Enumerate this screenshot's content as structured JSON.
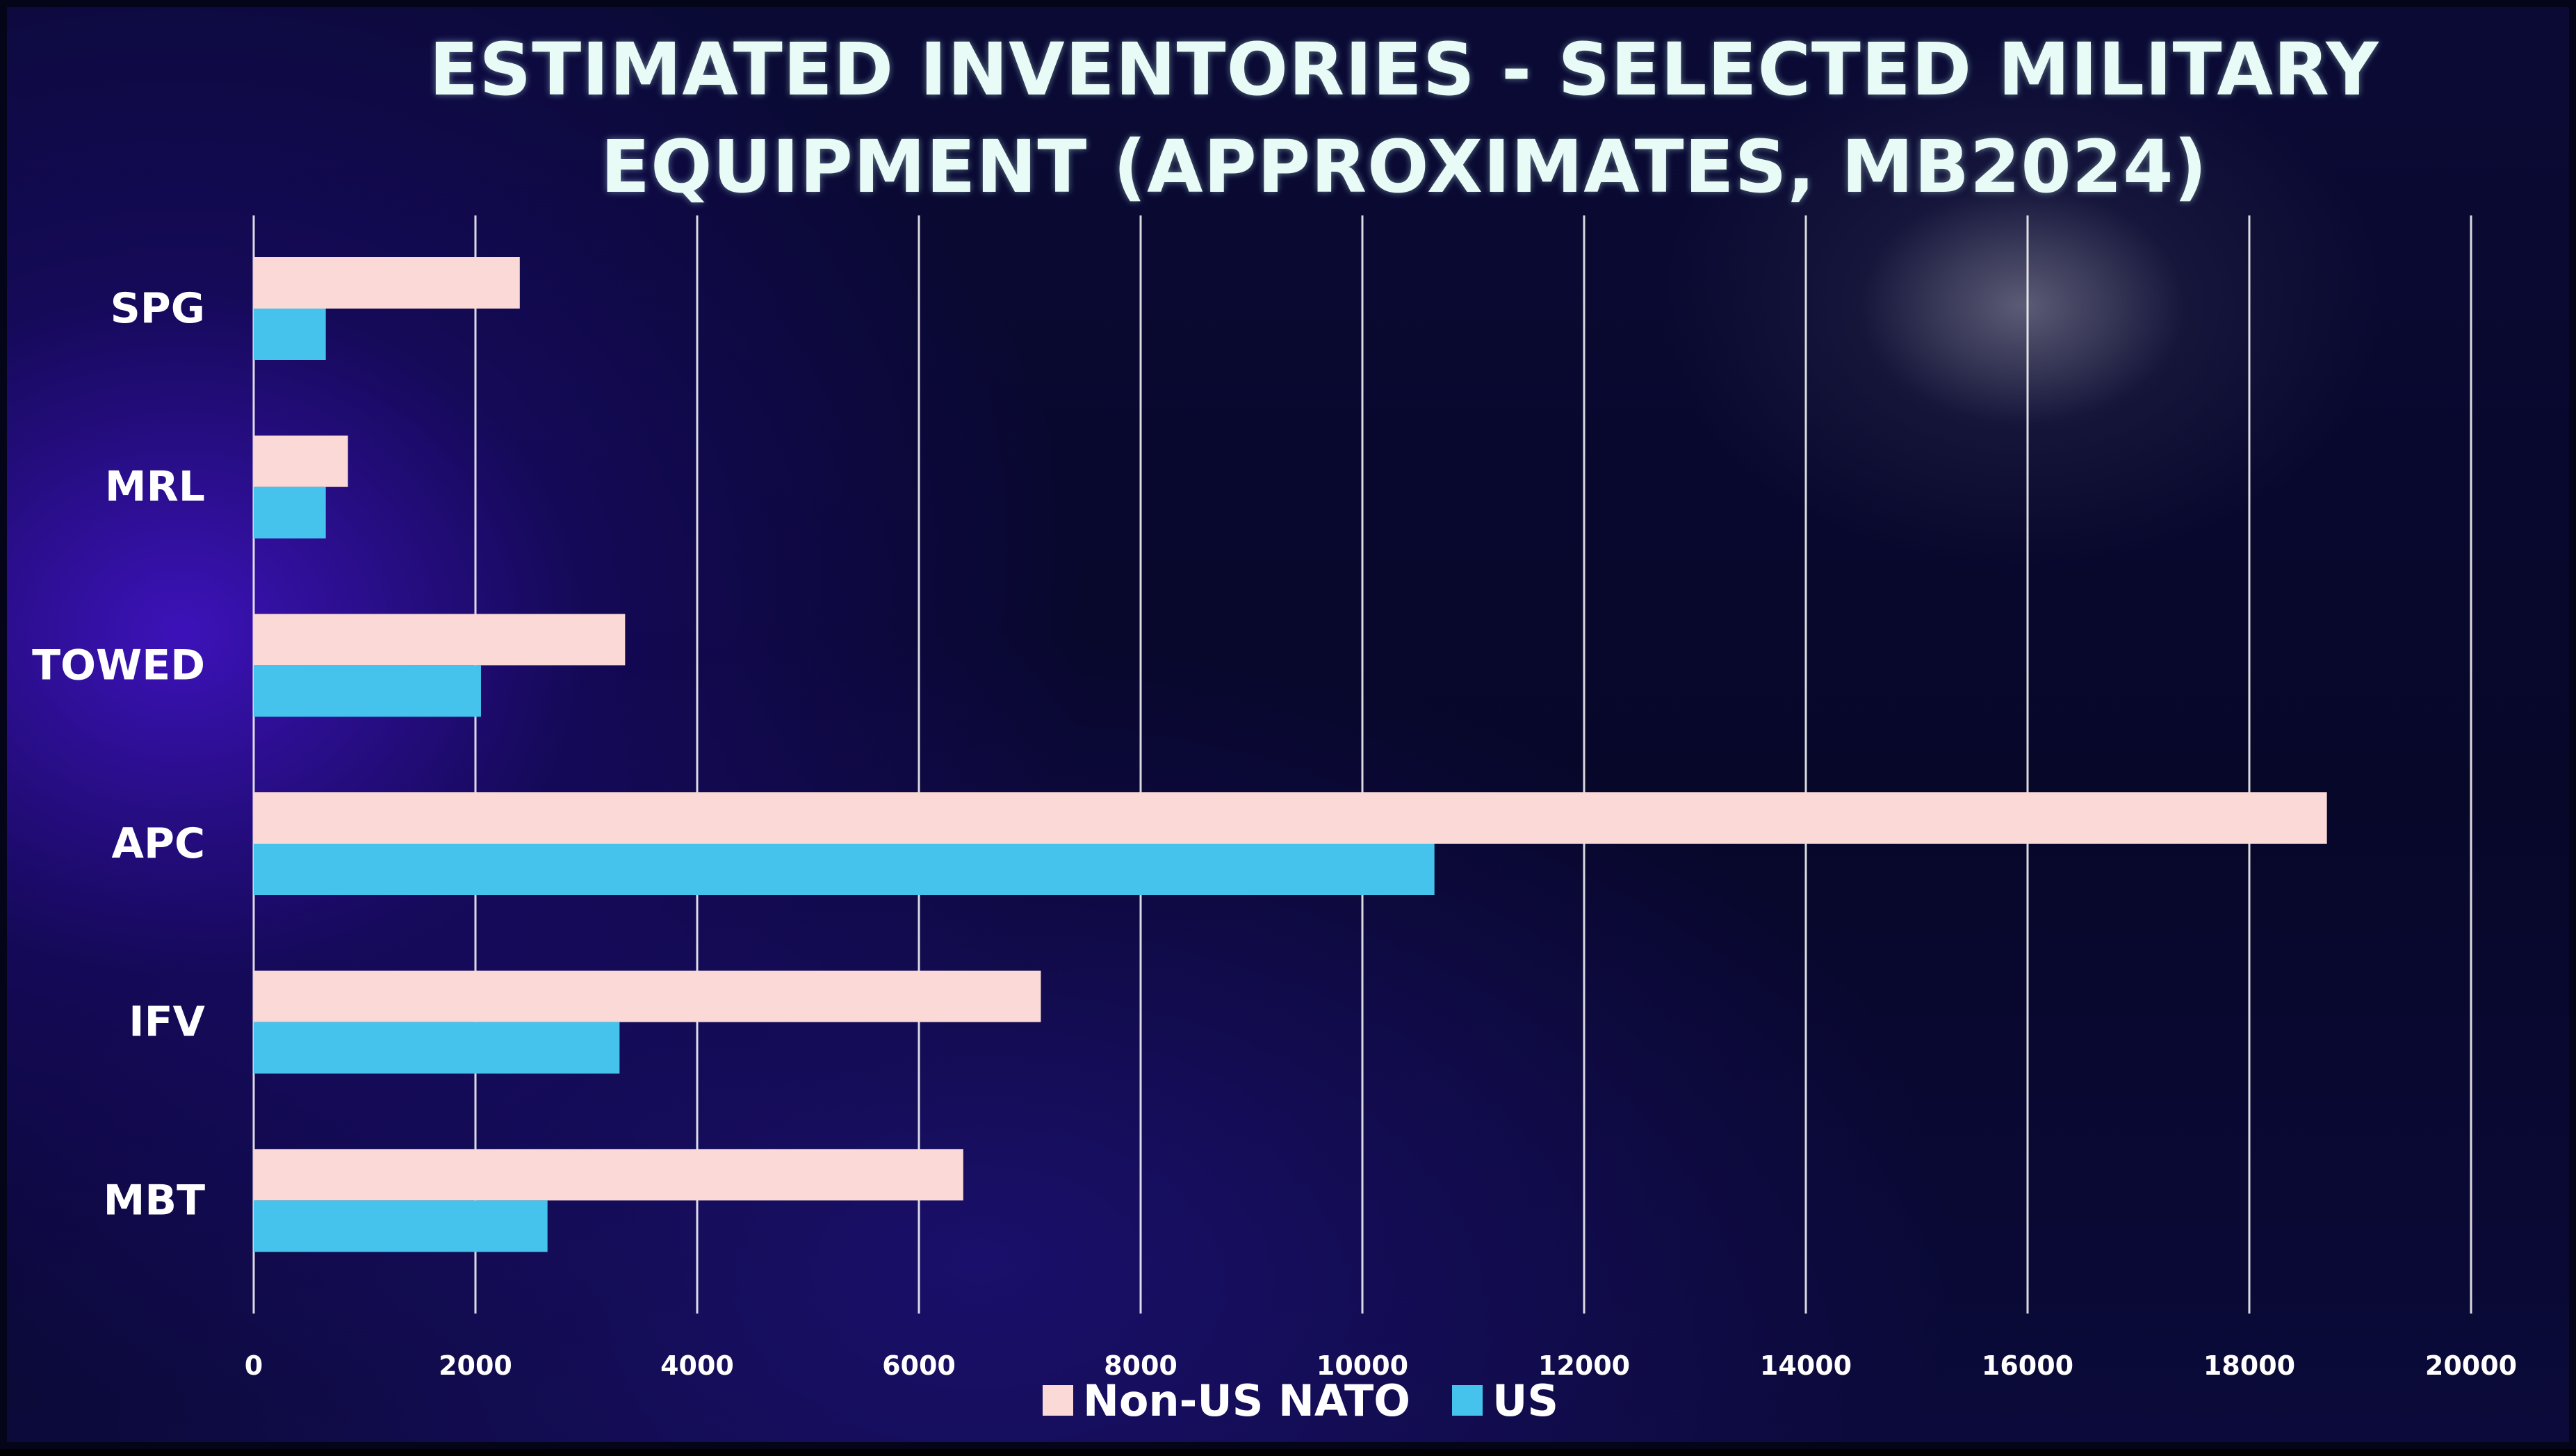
{
  "colors": {
    "non_us_nato": "#fad9d6",
    "us": "#45c3ec",
    "grid": "#ffffff"
  },
  "chart_data": {
    "type": "bar",
    "orientation": "horizontal",
    "title": "ESTIMATED INVENTORIES - SELECTED MILITARY EQUIPMENT (APPROXIMATES, MB2024)",
    "categories": [
      "SPG",
      "MRL",
      "TOWED",
      "APC",
      "IFV",
      "MBT"
    ],
    "series": [
      {
        "name": "Non-US NATO",
        "values": [
          2400,
          850,
          3350,
          18700,
          7100,
          6400
        ]
      },
      {
        "name": "US",
        "values": [
          650,
          650,
          2050,
          10650,
          3300,
          2650
        ]
      }
    ],
    "xlim": [
      0,
      20000
    ],
    "xticks": [
      "0",
      "2000",
      "4000",
      "6000",
      "8000",
      "10000",
      "12000",
      "14000",
      "16000",
      "18000",
      "20000"
    ],
    "grid": "vertical",
    "legend_position": "bottom"
  }
}
